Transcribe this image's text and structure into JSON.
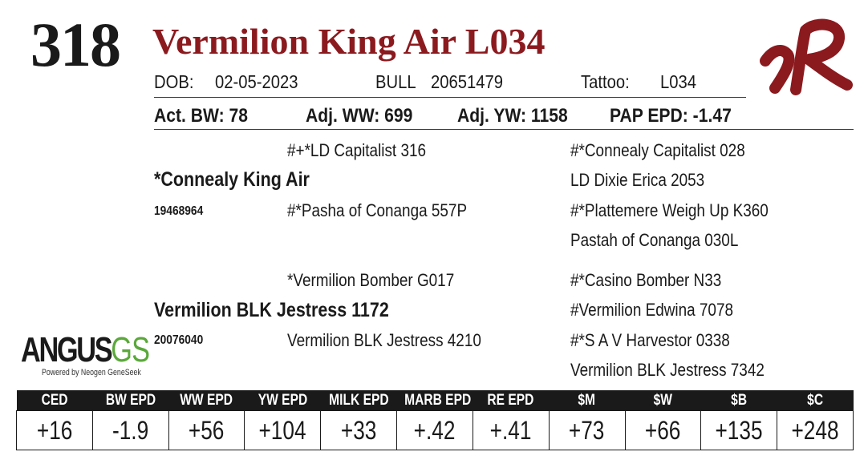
{
  "lot_number": "318",
  "animal_name": "Vermilion King Air L034",
  "info": {
    "dob_label": "DOB:",
    "dob": "02-05-2023",
    "sex": "BULL",
    "reg_number": "20651479",
    "tattoo_label": "Tattoo:",
    "tattoo": "L034"
  },
  "stats": {
    "act_bw": "Act. BW: 78",
    "adj_ww": "Adj. WW: 699",
    "adj_yw": "Adj. YW: 1158",
    "pap_epd": "PAP EPD: -1.47"
  },
  "pedigree": {
    "sire": "*Connealy King Air",
    "sire_reg": "19468964",
    "sire_sire": "#+*LD Capitalist 316",
    "sire_dam": "#*Pasha of Conanga 557P",
    "sire_sire_sire": "#*Connealy Capitalist 028",
    "sire_sire_dam": "LD Dixie Erica 2053",
    "sire_dam_sire": "#*Plattemere Weigh Up K360",
    "sire_dam_dam": "Pastah of Conanga 030L",
    "dam": "Vermilion BLK Jestress 1172",
    "dam_reg": "20076040",
    "dam_sire": "*Vermilion Bomber G017",
    "dam_dam": "Vermilion BLK Jestress 4210",
    "dam_sire_sire": "#*Casino Bomber N33",
    "dam_sire_dam": "#Vermilion Edwina 7078",
    "dam_dam_sire": "#*S A V Harvestor 0338",
    "dam_dam_dam": "Vermilion BLK Jestress 7342"
  },
  "logo": {
    "brand_main": "ANGUS",
    "brand_suffix": "GS",
    "tagline": "Powered by Neogen GeneSeek",
    "ranch_mark": "VR"
  },
  "epd": {
    "headers": [
      "CED",
      "BW EPD",
      "WW EPD",
      "YW EPD",
      "MILK EPD",
      "MARB EPD",
      "RE EPD",
      "$M",
      "$W",
      "$B",
      "$C"
    ],
    "values": [
      "+16",
      "-1.9",
      "+56",
      "+104",
      "+33",
      "+.42",
      "+.41",
      "+73",
      "+66",
      "+135",
      "+248"
    ]
  },
  "colors": {
    "accent": "#8b1a1f",
    "text": "#1a1a1a",
    "header_bg": "#1a1a1a",
    "logo_green": "#5aa83a"
  }
}
